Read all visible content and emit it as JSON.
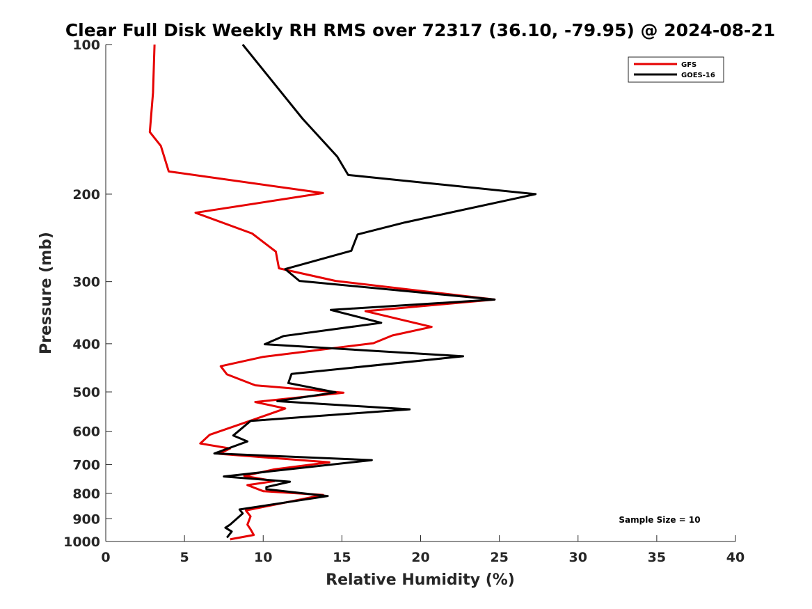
{
  "chart_data": {
    "type": "line",
    "title": "Clear Full Disk Weekly RH RMS over 72317 (36.10, -79.95) @ 2024-08-21",
    "xlabel": "Relative Humidity (%)",
    "ylabel": "Pressure (mb)",
    "xlim": [
      0,
      40
    ],
    "ylim": [
      1000,
      100
    ],
    "y_scale": "log",
    "x_ticks": [
      0,
      5,
      10,
      15,
      20,
      25,
      30,
      35,
      40
    ],
    "y_ticks": [
      100,
      200,
      300,
      400,
      500,
      600,
      700,
      800,
      900,
      1000
    ],
    "grid": false,
    "legend_position": "top-right",
    "annotation": "Sample Size = 10",
    "series": [
      {
        "name": "GFS",
        "color": "#e60000",
        "points": [
          [
            3.1,
            100
          ],
          [
            3.0,
            125
          ],
          [
            2.8,
            150
          ],
          [
            3.5,
            160
          ],
          [
            4.0,
            180
          ],
          [
            13.8,
            199
          ],
          [
            5.7,
            218
          ],
          [
            9.3,
            240
          ],
          [
            10.8,
            261
          ],
          [
            11.0,
            282
          ],
          [
            14.6,
            299
          ],
          [
            24.7,
            326
          ],
          [
            16.5,
            344
          ],
          [
            20.7,
            370
          ],
          [
            18.2,
            385
          ],
          [
            17.0,
            399
          ],
          [
            10.0,
            425
          ],
          [
            7.3,
            444
          ],
          [
            7.7,
            461
          ],
          [
            9.5,
            485
          ],
          [
            15.1,
            502
          ],
          [
            9.5,
            524
          ],
          [
            11.4,
            540
          ],
          [
            9.5,
            567
          ],
          [
            6.6,
            610
          ],
          [
            6.0,
            635
          ],
          [
            7.9,
            650
          ],
          [
            7.2,
            666
          ],
          [
            14.2,
            693
          ],
          [
            10.7,
            716
          ],
          [
            8.8,
            738
          ],
          [
            10.7,
            756
          ],
          [
            9.0,
            770
          ],
          [
            10.0,
            792
          ],
          [
            13.8,
            806
          ],
          [
            8.9,
            866
          ],
          [
            9.2,
            890
          ],
          [
            9.0,
            925
          ],
          [
            9.2,
            945
          ],
          [
            9.4,
            970
          ],
          [
            7.9,
            990
          ]
        ]
      },
      {
        "name": "GOES-16",
        "color": "#000000",
        "points": [
          [
            8.7,
            100
          ],
          [
            12.5,
            141
          ],
          [
            14.7,
            168
          ],
          [
            15.4,
            183
          ],
          [
            27.3,
            200
          ],
          [
            19.0,
            228
          ],
          [
            16.0,
            241
          ],
          [
            15.6,
            260
          ],
          [
            11.4,
            283
          ],
          [
            12.3,
            299
          ],
          [
            24.7,
            326
          ],
          [
            14.3,
            342
          ],
          [
            17.5,
            363
          ],
          [
            11.3,
            386
          ],
          [
            10.1,
            401
          ],
          [
            22.7,
            424
          ],
          [
            11.8,
            460
          ],
          [
            11.6,
            480
          ],
          [
            14.6,
            501
          ],
          [
            10.9,
            522
          ],
          [
            19.3,
            542
          ],
          [
            9.2,
            572
          ],
          [
            8.1,
            612
          ],
          [
            9.0,
            629
          ],
          [
            6.9,
            665
          ],
          [
            16.9,
            686
          ],
          [
            7.5,
            740
          ],
          [
            11.7,
            758
          ],
          [
            10.2,
            777
          ],
          [
            10.2,
            785
          ],
          [
            14.1,
            810
          ],
          [
            8.5,
            862
          ],
          [
            8.7,
            878
          ],
          [
            7.9,
            925
          ],
          [
            7.6,
            938
          ],
          [
            8.0,
            955
          ],
          [
            7.7,
            982
          ]
        ]
      }
    ]
  }
}
